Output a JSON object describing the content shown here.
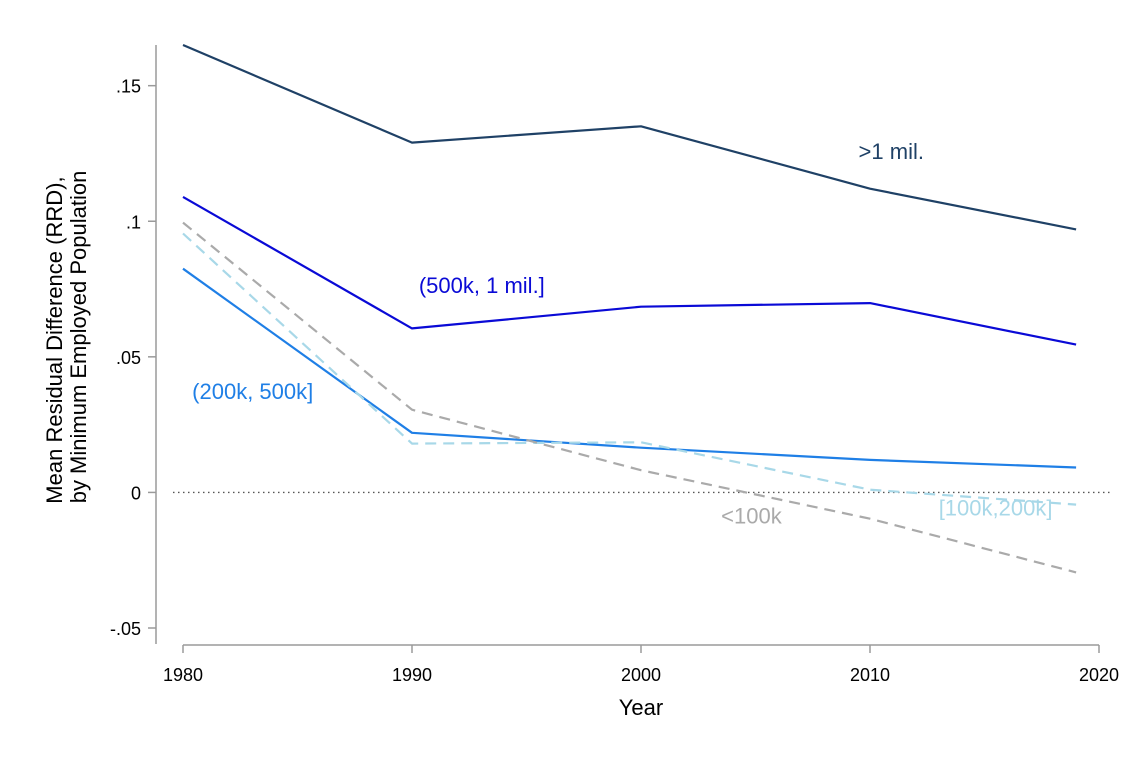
{
  "chart_data": {
    "type": "line",
    "xlabel": "Year",
    "ylabel_lines": [
      "Mean Residual Difference (RRD),",
      "by Minimum Employed Population"
    ],
    "xlim": [
      1980,
      2020
    ],
    "ylim": [
      -0.05,
      0.165
    ],
    "xticks": [
      1980,
      1990,
      2000,
      2010,
      2020
    ],
    "xtick_labels": [
      "1980",
      "1990",
      "2000",
      "2010",
      "2020"
    ],
    "yticks": [
      -0.05,
      0,
      0.05,
      0.1,
      0.15
    ],
    "ytick_labels": [
      "-.05",
      "0",
      ".05",
      ".1",
      ".15"
    ],
    "reference_line": {
      "y": 0,
      "style": "dotted",
      "color": "#555555"
    },
    "x": [
      1980,
      1990,
      2000,
      2010,
      2019
    ],
    "grid": false,
    "legend": "none (inline labels)",
    "series": [
      {
        "key": "gt1mil",
        "name": ">1 mil.",
        "color": "#1f4166",
        "dashed": false,
        "values": [
          0.165,
          0.129,
          0.135,
          0.112,
          0.097
        ],
        "label_anchor": [
          2009.5,
          0.123
        ]
      },
      {
        "key": "500k1mil",
        "name": "(500k, 1 mil.]",
        "color": "#0a0ad6",
        "dashed": false,
        "values": [
          0.109,
          0.0605,
          0.0685,
          0.0698,
          0.0545
        ],
        "label_anchor": [
          1990.3,
          0.0735
        ]
      },
      {
        "key": "200k500k",
        "name": "(200k, 500k]",
        "color": "#1f7fe6",
        "dashed": false,
        "values": [
          0.0825,
          0.022,
          0.0165,
          0.012,
          0.0092
        ],
        "label_anchor": [
          1980.4,
          0.0345
        ]
      },
      {
        "key": "100k200k",
        "name": "[100k,200k]",
        "color": "#a8d8e8",
        "dashed": true,
        "values": [
          0.0955,
          0.018,
          0.0185,
          0.001,
          -0.0045
        ],
        "label_anchor": [
          2013.0,
          -0.0085
        ]
      },
      {
        "key": "lt100k",
        "name": "<100k",
        "color": "#aaaaaa",
        "dashed": true,
        "values": [
          0.0995,
          0.0305,
          0.0082,
          -0.0097,
          -0.0295
        ],
        "label_anchor": [
          2003.5,
          -0.0115
        ]
      }
    ]
  }
}
